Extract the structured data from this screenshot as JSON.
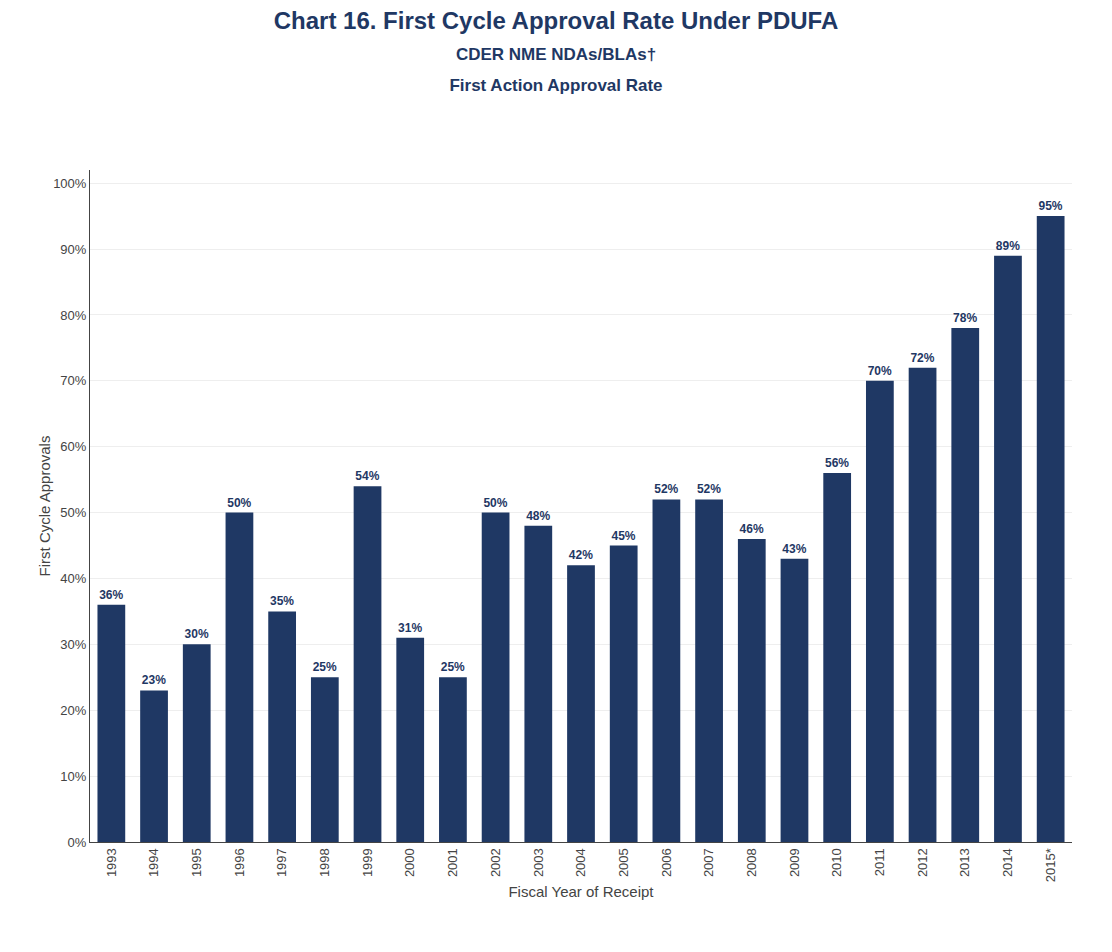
{
  "chart_data": {
    "type": "bar",
    "title": "Chart 16. First Cycle Approval Rate Under PDUFA",
    "subtitle": [
      "CDER NME NDAs/BLAs†",
      "First Action Approval Rate"
    ],
    "xlabel": "Fiscal Year of Receipt",
    "ylabel": "First Cycle Approvals",
    "categories": [
      "1993",
      "1994",
      "1995",
      "1996",
      "1997",
      "1998",
      "1999",
      "2000",
      "2001",
      "2002",
      "2003",
      "2004",
      "2005",
      "2006",
      "2007",
      "2008",
      "2009",
      "2010",
      "2011",
      "2012",
      "2013",
      "2014",
      "2015*"
    ],
    "values": [
      36,
      23,
      30,
      50,
      35,
      25,
      54,
      31,
      25,
      50,
      48,
      42,
      45,
      52,
      52,
      46,
      43,
      56,
      70,
      72,
      78,
      89,
      95
    ],
    "value_labels": [
      "36%",
      "23%",
      "30%",
      "50%",
      "35%",
      "25%",
      "54%",
      "31%",
      "25%",
      "50%",
      "48%",
      "42%",
      "45%",
      "52%",
      "52%",
      "46%",
      "43%",
      "56%",
      "70%",
      "72%",
      "78%",
      "89%",
      "95%"
    ],
    "data_labels": true,
    "color": "#1F3864",
    "ylim": [
      0,
      102
    ],
    "yticks": [
      {
        "value": 0,
        "label": "0%"
      },
      {
        "value": 10,
        "label": "10%"
      },
      {
        "value": 20,
        "label": "20%"
      },
      {
        "value": 30,
        "label": "30%"
      },
      {
        "value": 40,
        "label": "40%"
      },
      {
        "value": 50,
        "label": "50%"
      },
      {
        "value": 60,
        "label": "60%"
      },
      {
        "value": 70,
        "label": "70%"
      },
      {
        "value": 80,
        "label": "80%"
      },
      {
        "value": 90,
        "label": "90%"
      },
      {
        "value": 100,
        "label": "100%"
      }
    ],
    "grid": true
  }
}
